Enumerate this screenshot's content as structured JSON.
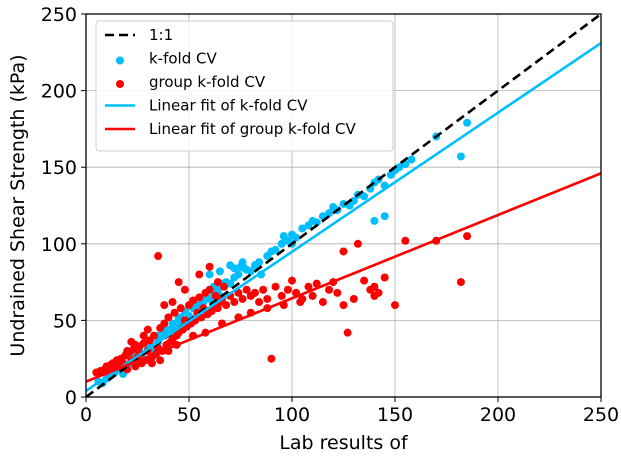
{
  "chart_data": {
    "type": "scatter",
    "xlabel": "Lab results of",
    "ylabel": "Undrained Shear Strength (kPa)",
    "xlim": [
      0,
      250
    ],
    "ylim": [
      0,
      250
    ],
    "xticks": [
      "0",
      "50",
      "100",
      "150",
      "200",
      "250"
    ],
    "yticks": [
      "0",
      "50",
      "100",
      "150",
      "200",
      "250"
    ],
    "grid": true,
    "legend_position": "top-left",
    "series": [
      {
        "name": "1:1",
        "kind": "line",
        "style": "dashed",
        "color": "#000000",
        "points": [
          [
            0,
            0
          ],
          [
            250,
            250
          ]
        ]
      },
      {
        "name": "k-fold CV",
        "kind": "scatter",
        "color": "#00bfff",
        "points": [
          [
            6,
            10
          ],
          [
            8,
            9
          ],
          [
            10,
            12
          ],
          [
            12,
            14
          ],
          [
            14,
            16
          ],
          [
            15,
            18
          ],
          [
            17,
            19
          ],
          [
            18,
            15
          ],
          [
            20,
            21
          ],
          [
            22,
            22
          ],
          [
            24,
            26
          ],
          [
            25,
            23
          ],
          [
            27,
            28
          ],
          [
            28,
            25
          ],
          [
            30,
            31
          ],
          [
            32,
            33
          ],
          [
            33,
            29
          ],
          [
            35,
            36
          ],
          [
            36,
            40
          ],
          [
            38,
            42
          ],
          [
            40,
            44
          ],
          [
            42,
            45
          ],
          [
            44,
            48
          ],
          [
            45,
            51
          ],
          [
            47,
            49
          ],
          [
            48,
            56
          ],
          [
            50,
            53
          ],
          [
            52,
            58
          ],
          [
            54,
            60
          ],
          [
            55,
            57
          ],
          [
            57,
            62
          ],
          [
            58,
            65
          ],
          [
            60,
            64
          ],
          [
            62,
            68
          ],
          [
            64,
            70
          ],
          [
            65,
            66
          ],
          [
            67,
            72
          ],
          [
            68,
            75
          ],
          [
            70,
            74
          ],
          [
            72,
            78
          ],
          [
            74,
            80
          ],
          [
            75,
            85
          ],
          [
            77,
            84
          ],
          [
            78,
            83
          ],
          [
            80,
            82
          ],
          [
            82,
            86
          ],
          [
            84,
            88
          ],
          [
            85,
            80
          ],
          [
            88,
            92
          ],
          [
            90,
            95
          ],
          [
            92,
            96
          ],
          [
            95,
            100
          ],
          [
            98,
            102
          ],
          [
            100,
            106
          ],
          [
            102,
            104
          ],
          [
            105,
            110
          ],
          [
            108,
            112
          ],
          [
            110,
            115
          ],
          [
            112,
            114
          ],
          [
            115,
            118
          ],
          [
            118,
            120
          ],
          [
            120,
            124
          ],
          [
            122,
            122
          ],
          [
            125,
            126
          ],
          [
            128,
            125
          ],
          [
            130,
            128
          ],
          [
            132,
            132
          ],
          [
            135,
            131
          ],
          [
            138,
            136
          ],
          [
            140,
            140
          ],
          [
            142,
            142
          ],
          [
            145,
            138
          ],
          [
            148,
            145
          ],
          [
            150,
            148
          ],
          [
            152,
            150
          ],
          [
            155,
            152
          ],
          [
            158,
            155
          ],
          [
            170,
            170
          ],
          [
            182,
            157
          ],
          [
            185,
            179
          ],
          [
            60,
            80
          ],
          [
            65,
            82
          ],
          [
            70,
            86
          ],
          [
            72,
            84
          ],
          [
            76,
            88
          ],
          [
            96,
            105
          ],
          [
            100,
            100
          ],
          [
            42,
            48
          ],
          [
            46,
            52
          ],
          [
            38,
            46
          ],
          [
            34,
            40
          ],
          [
            30,
            36
          ],
          [
            26,
            30
          ],
          [
            52,
            62
          ],
          [
            56,
            64
          ],
          [
            62,
            72
          ],
          [
            66,
            74
          ],
          [
            140,
            115
          ],
          [
            145,
            118
          ]
        ]
      },
      {
        "name": "group k-fold CV",
        "kind": "scatter",
        "color": "#ff0000",
        "points": [
          [
            5,
            16
          ],
          [
            7,
            17
          ],
          [
            9,
            18
          ],
          [
            10,
            20
          ],
          [
            11,
            16
          ],
          [
            12,
            21
          ],
          [
            13,
            22
          ],
          [
            14,
            19
          ],
          [
            15,
            24
          ],
          [
            16,
            20
          ],
          [
            17,
            25
          ],
          [
            18,
            22
          ],
          [
            19,
            27
          ],
          [
            20,
            18
          ],
          [
            21,
            29
          ],
          [
            22,
            24
          ],
          [
            23,
            31
          ],
          [
            24,
            20
          ],
          [
            25,
            26
          ],
          [
            26,
            33
          ],
          [
            27,
            22
          ],
          [
            28,
            35
          ],
          [
            29,
            24
          ],
          [
            30,
            30
          ],
          [
            31,
            37
          ],
          [
            32,
            26
          ],
          [
            33,
            40
          ],
          [
            34,
            28
          ],
          [
            35,
            32
          ],
          [
            36,
            45
          ],
          [
            37,
            30
          ],
          [
            38,
            48
          ],
          [
            39,
            34
          ],
          [
            40,
            52
          ],
          [
            41,
            36
          ],
          [
            42,
            38
          ],
          [
            43,
            55
          ],
          [
            44,
            40
          ],
          [
            45,
            42
          ],
          [
            46,
            58
          ],
          [
            47,
            44
          ],
          [
            48,
            50
          ],
          [
            49,
            46
          ],
          [
            50,
            60
          ],
          [
            51,
            48
          ],
          [
            52,
            63
          ],
          [
            53,
            50
          ],
          [
            54,
            55
          ],
          [
            55,
            65
          ],
          [
            56,
            52
          ],
          [
            57,
            58
          ],
          [
            58,
            68
          ],
          [
            59,
            54
          ],
          [
            60,
            70
          ],
          [
            61,
            56
          ],
          [
            62,
            60
          ],
          [
            63,
            66
          ],
          [
            64,
            58
          ],
          [
            65,
            62
          ],
          [
            66,
            64
          ],
          [
            67,
            72
          ],
          [
            68,
            60
          ],
          [
            70,
            66
          ],
          [
            72,
            62
          ],
          [
            74,
            68
          ],
          [
            76,
            64
          ],
          [
            78,
            70
          ],
          [
            80,
            66
          ],
          [
            82,
            68
          ],
          [
            84,
            62
          ],
          [
            86,
            70
          ],
          [
            88,
            64
          ],
          [
            90,
            25
          ],
          [
            92,
            72
          ],
          [
            95,
            66
          ],
          [
            98,
            70
          ],
          [
            100,
            76
          ],
          [
            102,
            68
          ],
          [
            105,
            64
          ],
          [
            108,
            72
          ],
          [
            110,
            66
          ],
          [
            112,
            74
          ],
          [
            115,
            62
          ],
          [
            118,
            70
          ],
          [
            120,
            75
          ],
          [
            122,
            68
          ],
          [
            125,
            60
          ],
          [
            127,
            42
          ],
          [
            130,
            64
          ],
          [
            132,
            100
          ],
          [
            135,
            76
          ],
          [
            138,
            70
          ],
          [
            140,
            66
          ],
          [
            142,
            68
          ],
          [
            145,
            78
          ],
          [
            150,
            60
          ],
          [
            155,
            102
          ],
          [
            170,
            102
          ],
          [
            182,
            75
          ],
          [
            185,
            105
          ],
          [
            125,
            95
          ],
          [
            140,
            72
          ],
          [
            35,
            92
          ],
          [
            45,
            75
          ],
          [
            55,
            80
          ],
          [
            60,
            85
          ],
          [
            48,
            70
          ],
          [
            64,
            75
          ],
          [
            38,
            60
          ],
          [
            42,
            62
          ],
          [
            30,
            44
          ],
          [
            28,
            40
          ],
          [
            20,
            30
          ],
          [
            22,
            36
          ],
          [
            52,
            40
          ],
          [
            58,
            42
          ],
          [
            66,
            48
          ],
          [
            74,
            52
          ],
          [
            80,
            55
          ],
          [
            88,
            58
          ],
          [
            96,
            60
          ],
          [
            104,
            62
          ],
          [
            24,
            34
          ],
          [
            26,
            28
          ],
          [
            32,
            22
          ],
          [
            36,
            24
          ],
          [
            40,
            30
          ],
          [
            44,
            34
          ]
        ]
      },
      {
        "name": "Linear fit of k-fold CV",
        "kind": "line",
        "style": "solid",
        "color": "#00bfff",
        "points": [
          [
            0,
            4
          ],
          [
            250,
            231
          ]
        ]
      },
      {
        "name": "Linear fit of group k-fold CV",
        "kind": "line",
        "style": "solid",
        "color": "#ff0000",
        "points": [
          [
            0,
            10
          ],
          [
            250,
            146
          ]
        ]
      }
    ]
  }
}
